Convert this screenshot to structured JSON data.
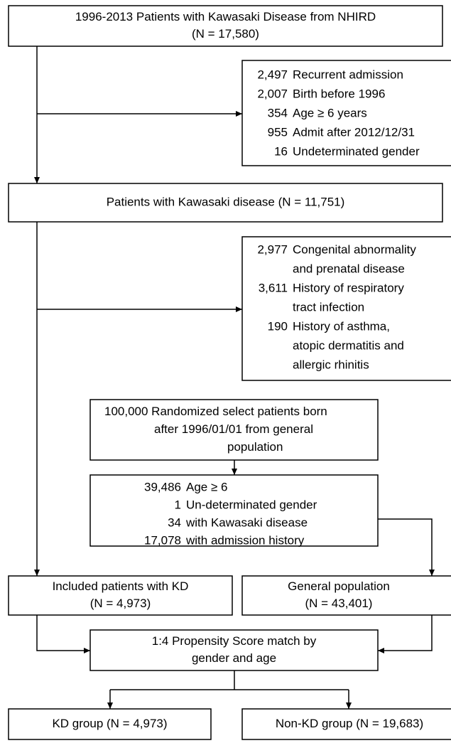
{
  "nodes": {
    "source": {
      "lines": [
        "1996-2013 Patients with Kawasaki Disease from NHIRD",
        "(N = 17,580)"
      ]
    },
    "exclusion_1": {
      "items": [
        {
          "count": "2,497",
          "text": [
            "Recurrent admission"
          ]
        },
        {
          "count": "2,007",
          "text": [
            "Birth before 1996"
          ]
        },
        {
          "count": "354",
          "text": [
            "Age ≥ 6 years"
          ]
        },
        {
          "count": "955",
          "text": [
            "Admit after 2012/12/31"
          ]
        },
        {
          "count": "16",
          "text": [
            "Undeterminated gender"
          ]
        }
      ]
    },
    "kd_patients": {
      "lines": [
        "Patients with Kawasaki disease (N = 11,751)"
      ]
    },
    "exclusion_2": {
      "items": [
        {
          "count": "2,977",
          "text": [
            "Congenital abnormality",
            "and prenatal disease"
          ]
        },
        {
          "count": "3,611",
          "text": [
            "History of respiratory",
            "tract infection"
          ]
        },
        {
          "count": "190",
          "text": [
            "History of asthma,",
            "atopic dermatitis and",
            "allergic rhinitis"
          ]
        }
      ]
    },
    "general_sample": {
      "lines": [
        "100,000 Randomized select patients born",
        "after 1996/01/01 from general",
        "population"
      ]
    },
    "exclusion_3": {
      "items": [
        {
          "count": "39,486",
          "text": [
            "Age ≥ 6"
          ]
        },
        {
          "count": "1",
          "text": [
            "Un-determinated gender"
          ]
        },
        {
          "count": "34",
          "text": [
            "with Kawasaki disease"
          ]
        },
        {
          "count": "17,078",
          "text": [
            "with admission history"
          ]
        }
      ]
    },
    "included_kd": {
      "lines": [
        "Included patients with KD",
        "(N = 4,973)"
      ]
    },
    "general_population": {
      "lines": [
        "General population",
        "(N = 43,401)"
      ]
    },
    "matching": {
      "lines": [
        "1:4 Propensity Score match by",
        "gender and age"
      ]
    },
    "kd_group": {
      "lines": [
        "KD group (N = 4,973)"
      ]
    },
    "non_kd_group": {
      "lines": [
        "Non-KD group (N = 19,683)"
      ]
    }
  }
}
